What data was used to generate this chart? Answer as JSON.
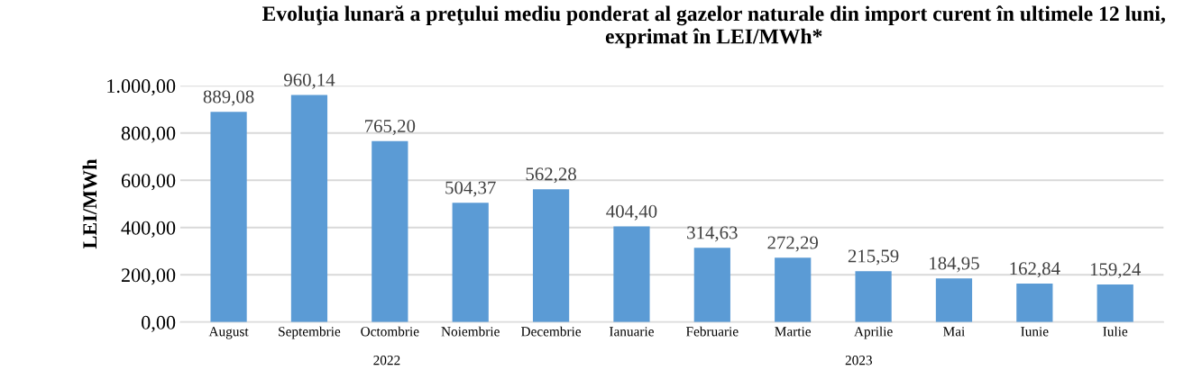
{
  "chart_data": {
    "type": "bar",
    "title": "Evoluţia lunară a preţului mediu ponderat al gazelor naturale din import curent în ultimele 12 luni, exprimat în LEI/MWh*",
    "ylabel": "LEI/MWh",
    "categories": [
      "August",
      "Septembrie",
      "Octombrie",
      "Noiembrie",
      "Decembrie",
      "Ianuarie",
      "Februarie",
      "Martie",
      "Aprilie",
      "Mai",
      "Iunie",
      "Iulie"
    ],
    "values": [
      889.08,
      960.14,
      765.2,
      504.37,
      562.28,
      404.4,
      314.63,
      272.29,
      215.59,
      184.95,
      162.84,
      159.24
    ],
    "value_labels": [
      "889,08",
      "960,14",
      "765,20",
      "504,37",
      "562,28",
      "404,40",
      "314,63",
      "272,29",
      "215,59",
      "184,95",
      "162,84",
      "159,24"
    ],
    "color": "#5b9bd5",
    "ylim": [
      0,
      1000
    ],
    "yticks": [
      {
        "value": 0,
        "label": "0,00"
      },
      {
        "value": 200,
        "label": "200,00"
      },
      {
        "value": 400,
        "label": "400,00"
      },
      {
        "value": 600,
        "label": "600,00"
      },
      {
        "value": 800,
        "label": "800,00"
      },
      {
        "value": 1000,
        "label": "1.000,00"
      }
    ],
    "grid": "y",
    "annotations": [
      "2022",
      "2023"
    ]
  }
}
